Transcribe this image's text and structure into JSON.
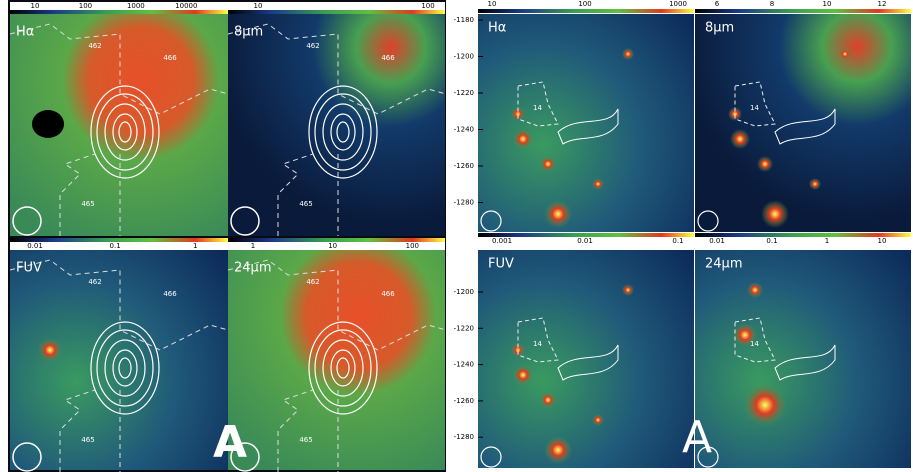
{
  "left": {
    "colorbars": [
      [
        10,
        100,
        1000,
        10000
      ],
      [
        10,
        100
      ],
      [
        0.01,
        0.1,
        1
      ],
      [
        1,
        10,
        100
      ]
    ],
    "panels": [
      {
        "label": "Hα",
        "regions": [
          462,
          466,
          465
        ]
      },
      {
        "label": "8μm",
        "regions": [
          462,
          466,
          465
        ]
      },
      {
        "label": "FUV",
        "regions": [
          462,
          466,
          465
        ]
      },
      {
        "label": "24μm",
        "regions": [
          462,
          466,
          465
        ]
      }
    ],
    "marker": "A"
  },
  "right": {
    "colorbars": [
      [
        10,
        100,
        1000
      ],
      [
        6,
        8,
        10,
        12
      ],
      [
        0.001,
        0.01,
        0.1
      ],
      [
        0.01,
        0.1,
        1,
        10
      ]
    ],
    "panels": [
      {
        "label": "Hα",
        "region": 14
      },
      {
        "label": "8μm",
        "region": 14
      },
      {
        "label": "FUV",
        "region": 14
      },
      {
        "label": "24μm",
        "region": 14
      }
    ],
    "yticks_top": [
      -1180,
      -1200,
      -1220,
      -1240,
      -1260,
      -1280
    ],
    "yticks_bottom": [
      -1200,
      -1220,
      -1240,
      -1260,
      -1280
    ],
    "marker": "A"
  }
}
